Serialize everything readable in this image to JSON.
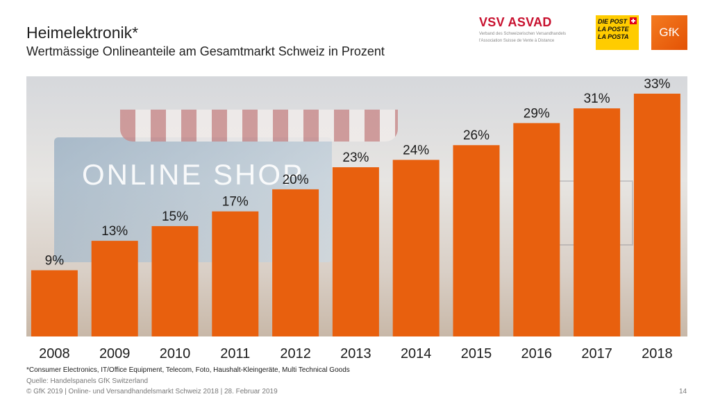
{
  "header": {
    "title": "Heimelektronik*",
    "subtitle": "Wertmässige Onlineanteile am Gesamtmarkt Schweiz in Prozent"
  },
  "logos": {
    "vsv": {
      "name": "VSV ASVAD",
      "tagline_de": "Verband des Schweizerischen Versandhandels",
      "tagline_fr": "l'Association Suisse de Vente à Distance"
    },
    "post": {
      "line1": "DIE POST",
      "line2": "LA POSTE",
      "line3": "LA POSTA"
    },
    "gfk": {
      "name": "GfK"
    }
  },
  "photo_text": "ONLINE SHOP",
  "chart_data": {
    "type": "bar",
    "title": "Wertmässige Onlineanteile am Gesamtmarkt Schweiz in Prozent",
    "categories": [
      "2008",
      "2009",
      "2010",
      "2011",
      "2012",
      "2013",
      "2014",
      "2015",
      "2016",
      "2017",
      "2018"
    ],
    "values": [
      9,
      13,
      15,
      17,
      20,
      23,
      24,
      26,
      29,
      31,
      33
    ],
    "labels": [
      "9%",
      "13%",
      "15%",
      "17%",
      "20%",
      "23%",
      "24%",
      "26%",
      "29%",
      "31%",
      "33%"
    ],
    "unit": "%",
    "ylim": [
      0,
      33
    ],
    "bar_color": "#e8600e",
    "grid": false,
    "legend": "none"
  },
  "footnote": "*Consumer Electronics, IT/Office Equipment, Telecom, Foto, Haushalt-Kleingeräte, Multi Technical Goods",
  "source": "Quelle: Handelspanels GfK Switzerland",
  "footer": "© GfK 2019 | Online- und Versandhandelsmarkt Schweiz 2018 | 28. Februar 2019",
  "page_number": "14"
}
